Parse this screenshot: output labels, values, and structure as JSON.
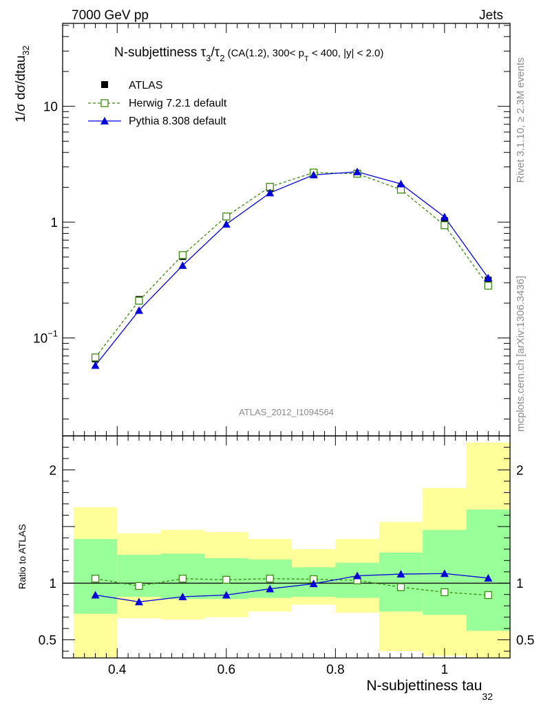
{
  "header": {
    "left": "7000 GeV pp",
    "right": "Jets"
  },
  "side_labels": {
    "rivet": "Rivet 3.1.10, ≥ 2.3M events",
    "mcplots": "mcplots.cern.ch [arXiv:1306.3436]"
  },
  "watermark": "ATLAS_2012_I1094564",
  "title": {
    "main": "N-subjettiness τ",
    "sub3": "3",
    "slash": "/τ",
    "sub2": "2",
    "details": " (CA(1.2), 300< p",
    "subT": "T",
    "details2": " < 400, |y| < 2.0)"
  },
  "legend": {
    "atlas": "ATLAS",
    "herwig": "Herwig 7.2.1 default",
    "pythia": "Pythia 8.308 default"
  },
  "colors": {
    "atlas": "#000000",
    "herwig": "#3a8a0e",
    "pythia": "#0000dd",
    "band_inner": "#99ff99",
    "band_outer": "#ffff99"
  },
  "chart_data": [
    {
      "type": "line",
      "yscale": "log",
      "xlim": [
        0.3,
        1.12
      ],
      "ylim": [
        0.0143,
        52
      ],
      "ylabel": "1/σ dσ/dtau",
      "ylabel_sub": "32",
      "y_ticks": [
        {
          "v": 10,
          "label": "10"
        },
        {
          "v": 1,
          "label": "1"
        },
        {
          "v": 0.1,
          "label": "10",
          "sup": "−1"
        }
      ],
      "x": [
        0.36,
        0.44,
        0.52,
        0.6,
        0.68,
        0.76,
        0.84,
        0.92,
        1.0,
        1.08
      ],
      "series": [
        {
          "name": "ATLAS",
          "values": [
            0.066,
            0.215,
            0.505,
            1.11,
            1.97,
            2.62,
            2.65,
            1.97,
            1.03,
            0.316
          ]
        },
        {
          "name": "Herwig 7.2.1 default",
          "values": [
            0.068,
            0.21,
            0.52,
            1.12,
            2.02,
            2.68,
            2.62,
            1.91,
            0.94,
            0.283
          ]
        },
        {
          "name": "Pythia 8.308 default",
          "values": [
            0.058,
            0.173,
            0.423,
            0.96,
            1.79,
            2.56,
            2.72,
            2.14,
            1.11,
            0.33
          ]
        }
      ]
    },
    {
      "type": "line",
      "yscale": "linear",
      "xlim": [
        0.3,
        1.12
      ],
      "ylim": [
        0.34,
        2.3
      ],
      "ylabel": "Ratio to ATLAS",
      "xlabel": "N-subjettiness tau",
      "xlabel_sub": "32",
      "x_ticks": [
        {
          "v": 0.4,
          "label": "0.4"
        },
        {
          "v": 0.6,
          "label": "0.6"
        },
        {
          "v": 0.8,
          "label": "0.8"
        },
        {
          "v": 1.0,
          "label": "1"
        }
      ],
      "y_ticks": [
        {
          "v": 2,
          "label": "2"
        },
        {
          "v": 1,
          "label": "1"
        },
        {
          "v": 0.5,
          "label": "0.5"
        }
      ],
      "bin_edges": [
        0.32,
        0.4,
        0.48,
        0.56,
        0.64,
        0.72,
        0.8,
        0.88,
        0.96,
        1.04,
        1.12
      ],
      "band_inner": {
        "lo": [
          0.73,
          0.88,
          0.86,
          0.86,
          0.87,
          0.88,
          0.87,
          0.75,
          0.72,
          0.58
        ],
        "hi": [
          1.39,
          1.25,
          1.26,
          1.22,
          1.21,
          1.14,
          1.18,
          1.27,
          1.47,
          1.65
        ]
      },
      "band_outer": {
        "lo": [
          0.3,
          0.69,
          0.68,
          0.7,
          0.75,
          0.81,
          0.74,
          0.4,
          0.36,
          0.32
        ],
        "hi": [
          1.67,
          1.44,
          1.47,
          1.45,
          1.39,
          1.3,
          1.39,
          1.54,
          1.84,
          2.24
        ]
      },
      "x": [
        0.36,
        0.44,
        0.52,
        0.6,
        0.68,
        0.76,
        0.84,
        0.92,
        1.0,
        1.08
      ],
      "series": [
        {
          "name": "Herwig 7.2.1 default",
          "values": [
            1.04,
            0.975,
            1.04,
            1.03,
            1.04,
            1.035,
            1.025,
            0.965,
            0.92,
            0.895
          ]
        },
        {
          "name": "Pythia 8.308 default",
          "values": [
            0.895,
            0.835,
            0.88,
            0.895,
            0.95,
            0.995,
            1.065,
            1.08,
            1.085,
            1.045
          ]
        }
      ]
    }
  ]
}
